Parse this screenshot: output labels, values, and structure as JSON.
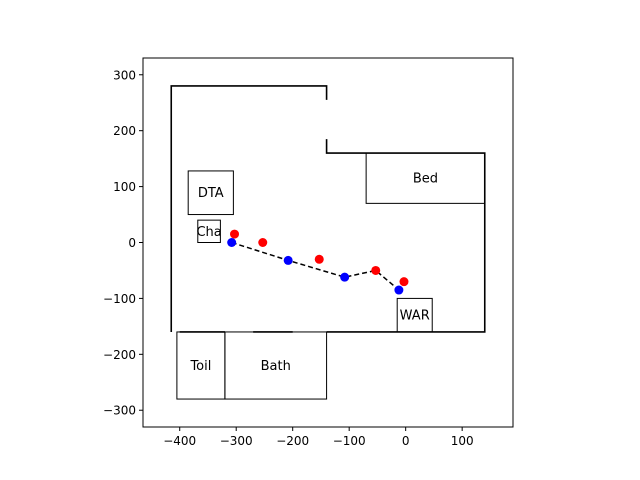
{
  "chart_data": {
    "type": "scatter",
    "title": "",
    "xlabel": "",
    "ylabel": "",
    "xlim": [
      -465,
      190
    ],
    "ylim": [
      -330,
      330
    ],
    "x_ticks": [
      -400,
      -300,
      -200,
      -100,
      0,
      100
    ],
    "x_tick_labels": [
      "−400",
      "−300",
      "−200",
      "−100",
      "0",
      "100"
    ],
    "y_ticks": [
      -300,
      -200,
      -100,
      0,
      100,
      200,
      300
    ],
    "y_tick_labels": [
      "−300",
      "−200",
      "−100",
      "0",
      "100",
      "200",
      "300"
    ],
    "grid": false,
    "walls": [
      [
        [
          -415,
          -160
        ],
        [
          -415,
          280
        ],
        [
          -140,
          280
        ],
        [
          -140,
          255
        ]
      ],
      [
        [
          -140,
          185
        ],
        [
          -140,
          160
        ],
        [
          140,
          160
        ],
        [
          140,
          -160
        ],
        [
          -140,
          -160
        ]
      ],
      [
        [
          -200,
          -160
        ],
        [
          -270,
          -160
        ]
      ],
      [
        [
          -320,
          -160
        ],
        [
          -400,
          -160
        ]
      ]
    ],
    "rooms": [
      {
        "label": "DTA",
        "x0": -385,
        "y0": 50,
        "x1": -305,
        "y1": 128
      },
      {
        "label": "Cha",
        "x0": -368,
        "y0": 0,
        "x1": -328,
        "y1": 40
      },
      {
        "label": "Bed",
        "x0": -70,
        "y0": 70,
        "x1": 140,
        "y1": 160
      },
      {
        "label": "WAR",
        "x0": -15,
        "y0": -160,
        "x1": 47,
        "y1": -100
      },
      {
        "label": "Toil",
        "x0": -405,
        "y0": -280,
        "x1": -320,
        "y1": -160
      },
      {
        "label": "Bath",
        "x0": -320,
        "y0": -280,
        "x1": -140,
        "y1": -160
      }
    ],
    "series": [
      {
        "color": "#ff0000",
        "style": "points",
        "x": [
          -303,
          -253,
          -153,
          -53,
          -3
        ],
        "y": [
          15,
          0,
          -30,
          -50,
          -70
        ]
      },
      {
        "color": "#0000ff",
        "style": "points",
        "x": [
          -308,
          -208,
          -108,
          -12
        ],
        "y": [
          0,
          -32,
          -62,
          -85
        ]
      },
      {
        "color": "#000000",
        "style": "dashed-line",
        "x": [
          -308,
          -208,
          -108,
          -53,
          -12
        ],
        "y": [
          0,
          -32,
          -62,
          -50,
          -85
        ]
      }
    ]
  }
}
